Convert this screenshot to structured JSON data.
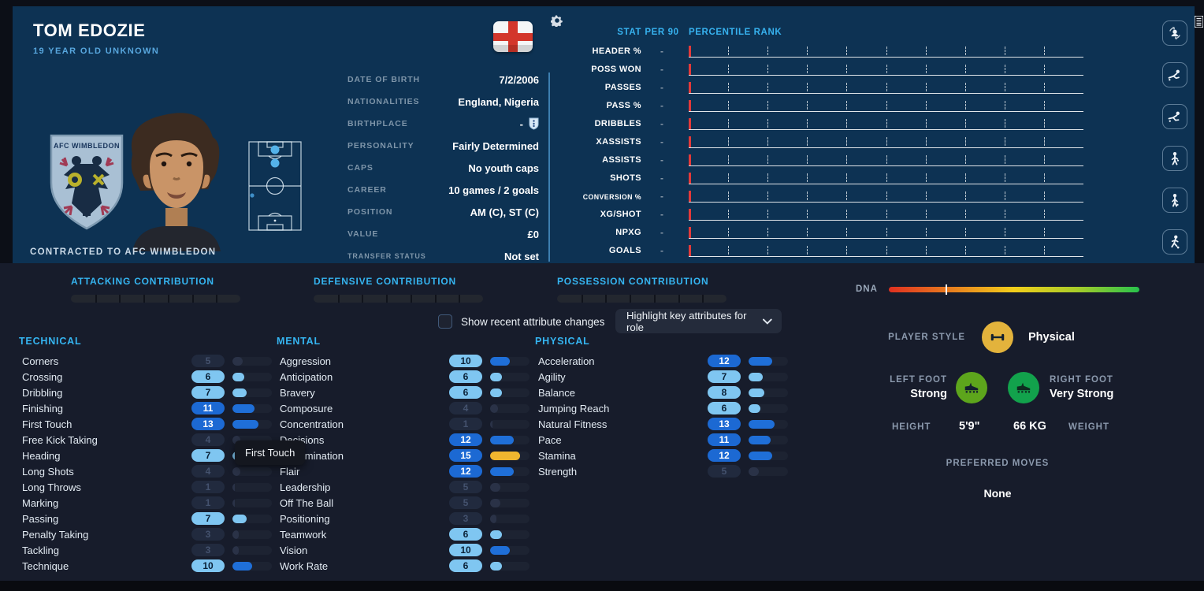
{
  "header": {
    "name": "TOM EDOZIE",
    "subtitle": "19 YEAR OLD UNKNOWN",
    "contracted": "CONTRACTED TO AFC WIMBLEDON",
    "crest_text": "AFC WIMBLEDON"
  },
  "info": {
    "rows": [
      {
        "label": "DATE OF BIRTH",
        "value": "7/2/2006"
      },
      {
        "label": "NATIONALITIES",
        "value": "England, Nigeria"
      },
      {
        "label": "BIRTHPLACE",
        "value": "-",
        "icon": "fa-crest-icon"
      },
      {
        "label": "PERSONALITY",
        "value": "Fairly Determined"
      },
      {
        "label": "CAPS",
        "value": "No youth caps"
      },
      {
        "label": "CAREER",
        "value": "10 games /   2 goals"
      },
      {
        "label": "POSITION",
        "value": "AM (C), ST (C)"
      },
      {
        "label": "VALUE",
        "value": "£0"
      },
      {
        "label": "TRANSFER STATUS",
        "value": "Not set"
      }
    ]
  },
  "stats": {
    "col_stat": "STAT",
    "col_per90": "PER 90",
    "col_rank": "PERCENTILE RANK",
    "rows": [
      {
        "label": "HEADER %",
        "per90": "-"
      },
      {
        "label": "POSS WON",
        "per90": "-"
      },
      {
        "label": "PASSES",
        "per90": "-"
      },
      {
        "label": "PASS %",
        "per90": "-"
      },
      {
        "label": "DRIBBLES",
        "per90": "-"
      },
      {
        "label": "XASSISTS",
        "per90": "-"
      },
      {
        "label": "ASSISTS",
        "per90": "-"
      },
      {
        "label": "SHOTS",
        "per90": "-"
      },
      {
        "label": "CONVERSION %",
        "per90": "-"
      },
      {
        "label": "XG/SHOT",
        "per90": "-"
      },
      {
        "label": "NPXG",
        "per90": "-"
      },
      {
        "label": "GOALS",
        "per90": "-"
      }
    ]
  },
  "rail_icons": [
    "compare-player-icon",
    "slide-tackle-icon",
    "slide-tackle-icon-2",
    "standing-player-icon",
    "standing-player-icon-2",
    "running-player-icon"
  ],
  "contributions": [
    "ATTACKING CONTRIBUTION",
    "DEFENSIVE CONTRIBUTION",
    "POSSESSION CONTRIBUTION"
  ],
  "dna": {
    "label": "DNA",
    "marker_pct": 22.6,
    "gradient": [
      "#e03020",
      "#e87f1f",
      "#f2ce1b",
      "#a8cc29",
      "#27c24c"
    ]
  },
  "controls": {
    "checkbox_label": "Show recent attribute changes",
    "dropdown_label": "Highlight key attributes for role"
  },
  "attributes": {
    "technical": {
      "title": "TECHNICAL",
      "items": [
        {
          "name": "Corners",
          "value": 5
        },
        {
          "name": "Crossing",
          "value": 6
        },
        {
          "name": "Dribbling",
          "value": 7
        },
        {
          "name": "Finishing",
          "value": 11
        },
        {
          "name": "First Touch",
          "value": 13
        },
        {
          "name": "Free Kick Taking",
          "value": 4
        },
        {
          "name": "Heading",
          "value": 7
        },
        {
          "name": "Long Shots",
          "value": 4
        },
        {
          "name": "Long Throws",
          "value": 1
        },
        {
          "name": "Marking",
          "value": 1
        },
        {
          "name": "Passing",
          "value": 7
        },
        {
          "name": "Penalty Taking",
          "value": 3
        },
        {
          "name": "Tackling",
          "value": 3
        },
        {
          "name": "Technique",
          "value": 10
        }
      ]
    },
    "mental": {
      "title": "MENTAL",
      "items": [
        {
          "name": "Aggression",
          "value": 10
        },
        {
          "name": "Anticipation",
          "value": 6
        },
        {
          "name": "Bravery",
          "value": 6
        },
        {
          "name": "Composure",
          "value": 4
        },
        {
          "name": "Concentration",
          "value": 1
        },
        {
          "name": "Decisions",
          "value": 12
        },
        {
          "name": "Determination",
          "value": 15
        },
        {
          "name": "Flair",
          "value": 12
        },
        {
          "name": "Leadership",
          "value": 5
        },
        {
          "name": "Off The Ball",
          "value": 5
        },
        {
          "name": "Positioning",
          "value": 3
        },
        {
          "name": "Teamwork",
          "value": 6
        },
        {
          "name": "Vision",
          "value": 10
        },
        {
          "name": "Work Rate",
          "value": 6
        }
      ]
    },
    "physical": {
      "title": "PHYSICAL",
      "items": [
        {
          "name": "Acceleration",
          "value": 12
        },
        {
          "name": "Agility",
          "value": 7
        },
        {
          "name": "Balance",
          "value": 8
        },
        {
          "name": "Jumping Reach",
          "value": 6
        },
        {
          "name": "Natural Fitness",
          "value": 13
        },
        {
          "name": "Pace",
          "value": 11
        },
        {
          "name": "Stamina",
          "value": 12
        },
        {
          "name": "Strength",
          "value": 5
        }
      ]
    }
  },
  "tooltip": {
    "text": "First Touch"
  },
  "style_panel": {
    "player_style_label": "PLAYER STYLE",
    "player_style_value": "Physical",
    "left_foot_label": "LEFT FOOT",
    "left_foot_value": "Strong",
    "right_foot_label": "RIGHT FOOT",
    "right_foot_value": "Very Strong",
    "height_label": "HEIGHT",
    "height_value": "5'9\"",
    "weight_value": "66 KG",
    "weight_label": "WEIGHT",
    "preferred_moves_label": "PREFERRED MOVES",
    "preferred_moves_value": "None"
  },
  "colors": {
    "accent_cyan": "#35b5f1",
    "pill_light": "#7fc6f1",
    "pill_mid": "#1c69d3",
    "bar_gold": "#f0b62f",
    "stat_red_tick": "#e23a3a",
    "style_gold": "#e3b33c",
    "left_foot_green": "#5da51c",
    "right_foot_green": "#12a24c",
    "hero_bg": "#0d3253",
    "lower_bg": "#171c2b"
  }
}
